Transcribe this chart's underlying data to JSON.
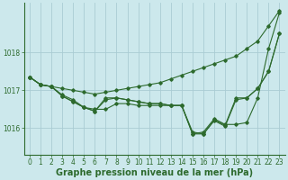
{
  "background_color": "#cce8ec",
  "grid_color": "#aaccd4",
  "line_color": "#2d6a2d",
  "xlabel": "Graphe pression niveau de la mer (hPa)",
  "xlabel_fontsize": 7,
  "tick_fontsize": 5.5,
  "xlim": [
    -0.5,
    23.5
  ],
  "ylim": [
    1015.3,
    1019.3
  ],
  "yticks": [
    1016,
    1017,
    1018
  ],
  "xticks": [
    0,
    1,
    2,
    3,
    4,
    5,
    6,
    7,
    8,
    9,
    10,
    11,
    12,
    13,
    14,
    15,
    16,
    17,
    18,
    19,
    20,
    21,
    22,
    23
  ],
  "series": [
    [
      1017.35,
      1017.15,
      1017.1,
      1017.05,
      1017.0,
      1016.95,
      1016.9,
      1016.95,
      1017.0,
      1017.05,
      1017.1,
      1017.15,
      1017.2,
      1017.3,
      1017.4,
      1017.5,
      1017.6,
      1017.7,
      1017.8,
      1017.9,
      1018.1,
      1018.3,
      1018.7,
      1019.1
    ],
    [
      1017.35,
      1017.15,
      1017.1,
      1016.85,
      1016.7,
      1016.55,
      1016.5,
      1016.5,
      1016.65,
      1016.65,
      1016.6,
      1016.6,
      1016.6,
      1016.6,
      1016.6,
      1015.85,
      1015.9,
      1016.25,
      1016.1,
      1016.1,
      1016.15,
      1016.8,
      1018.1,
      1019.05
    ],
    [
      1017.35,
      1017.15,
      1017.1,
      1016.85,
      1016.7,
      1016.55,
      1016.45,
      1016.75,
      1016.8,
      1016.75,
      1016.7,
      1016.65,
      1016.65,
      1016.6,
      1016.6,
      1015.9,
      1015.85,
      1016.2,
      1016.05,
      1016.75,
      1016.8,
      1017.05,
      1017.5,
      1018.5
    ],
    [
      1017.35,
      1017.15,
      1017.1,
      1016.88,
      1016.75,
      1016.55,
      1016.45,
      1016.8,
      1016.8,
      1016.75,
      1016.7,
      1016.65,
      1016.65,
      1016.6,
      1016.6,
      1015.85,
      1015.85,
      1016.22,
      1016.08,
      1016.8,
      1016.8,
      1017.05,
      1017.5,
      1018.5
    ]
  ]
}
